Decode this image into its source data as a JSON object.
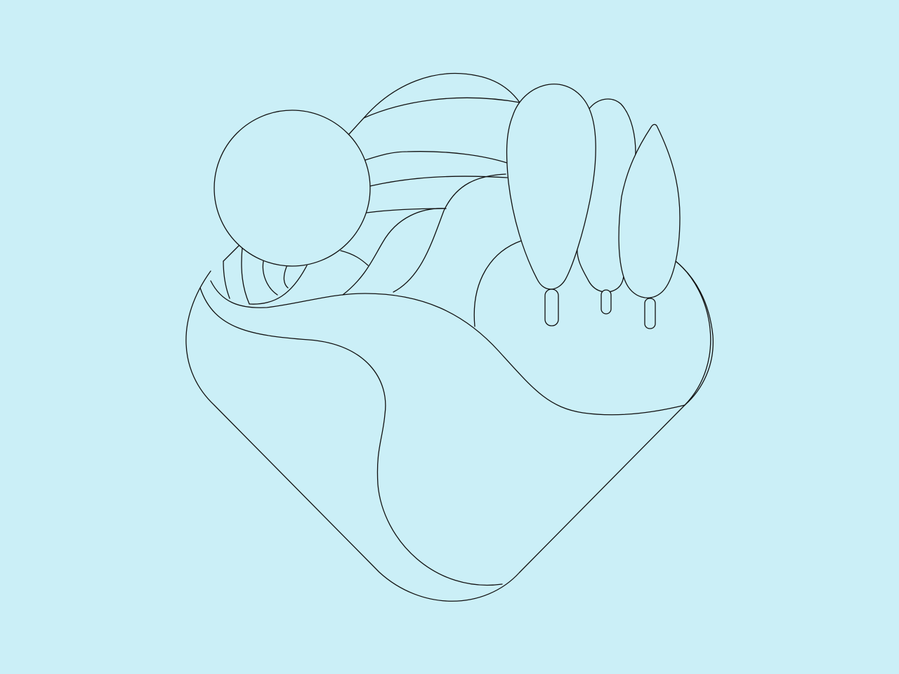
{
  "colors": {
    "background": "#cbeff7",
    "stroke": "#111111",
    "fill": "#cbeff7"
  },
  "illustration": {
    "subject": "line-art emblem",
    "elements": [
      "sun",
      "sun-rays",
      "rolling-hills",
      "tree-large",
      "tree-medium",
      "tree-small",
      "rounded-diamond-base"
    ]
  }
}
